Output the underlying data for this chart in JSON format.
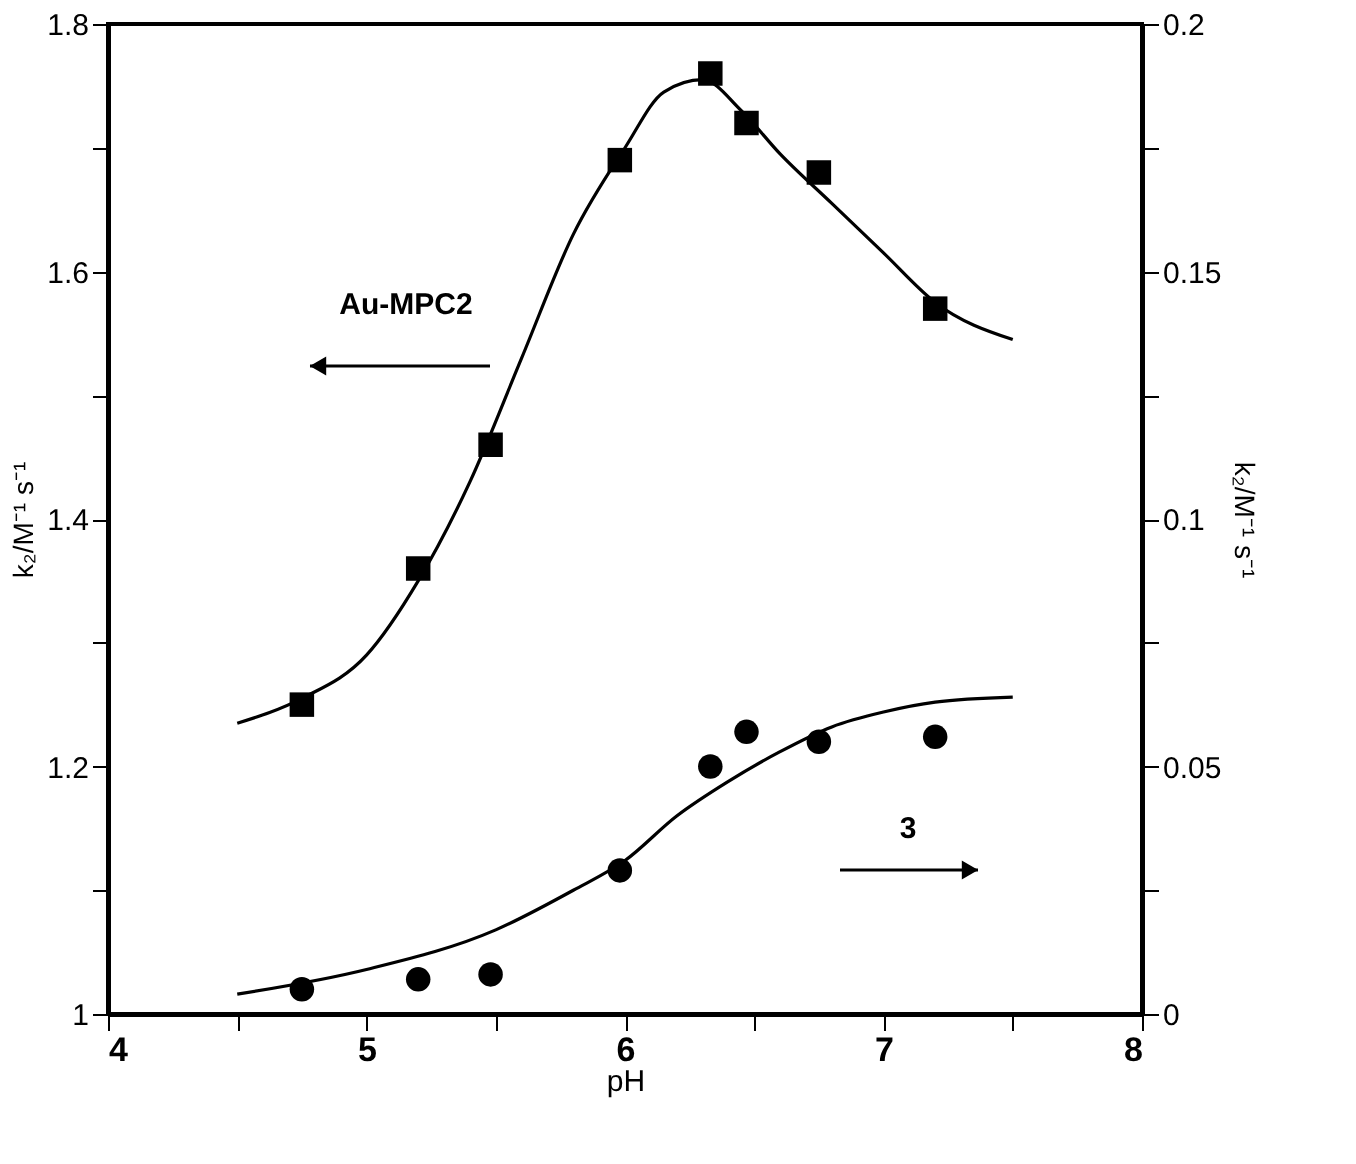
{
  "chart_data": {
    "type": "scatter",
    "xlabel": "pH",
    "ylabel": "k₂/M⁻¹ s⁻¹",
    "y2label": "k₂/M⁻¹ s⁻¹",
    "xlim": [
      4,
      8
    ],
    "xticks": [
      4,
      {
        "value": 4.5,
        "label": null
      },
      5,
      {
        "value": 5.5,
        "label": null
      },
      6,
      {
        "value": 6.5,
        "label": null
      },
      7,
      {
        "value": 7.5,
        "label": null
      },
      8
    ],
    "ylim": [
      1,
      1.8
    ],
    "yticks": [
      1,
      {
        "value": 1.1,
        "label": null
      },
      1.2,
      {
        "value": 1.3,
        "label": null
      },
      1.4,
      {
        "value": 1.5,
        "label": null
      },
      1.6,
      {
        "value": 1.7,
        "label": null
      },
      1.8
    ],
    "y2lim": [
      0,
      0.2
    ],
    "y2ticks": [
      0,
      {
        "value": 0.025,
        "label": null
      },
      0.05,
      {
        "value": 0.075,
        "label": null
      },
      0.1,
      {
        "value": 0.125,
        "label": null
      },
      0.15,
      {
        "value": 0.175,
        "label": null
      },
      0.2
    ],
    "grid": false,
    "series": [
      {
        "marker": "square",
        "color": "#000000",
        "x": [
          4.75,
          5.2,
          5.48,
          5.98,
          6.33,
          6.47,
          6.75,
          7.2
        ],
        "values": [
          1.25,
          1.36,
          1.46,
          1.69,
          1.76,
          1.72,
          1.68,
          1.57
        ]
      },
      {
        "marker": "circle",
        "color": "#000000",
        "axis": "y2",
        "x": [
          4.75,
          5.2,
          5.48,
          5.98,
          6.33,
          6.47,
          6.75,
          7.2
        ],
        "values": [
          0.005,
          0.007,
          0.008,
          0.029,
          0.05,
          0.057,
          0.055,
          0.056
        ]
      },
      {
        "type": "line",
        "marker": "none",
        "color": "#000000",
        "x": [
          4.5,
          4.75,
          5.0,
          5.2,
          5.4,
          5.6,
          5.8,
          6.0,
          6.15,
          6.3,
          6.45,
          6.6,
          6.8,
          7.0,
          7.2,
          7.5
        ],
        "values": [
          1.235,
          1.255,
          1.29,
          1.35,
          1.43,
          1.53,
          1.63,
          1.7,
          1.745,
          1.755,
          1.73,
          1.695,
          1.655,
          1.615,
          1.575,
          1.545
        ]
      },
      {
        "type": "line",
        "marker": "none",
        "color": "#000000",
        "axis": "y2",
        "x": [
          4.5,
          5.0,
          5.5,
          5.8,
          6.0,
          6.2,
          6.4,
          6.6,
          6.8,
          7.0,
          7.2,
          7.5
        ],
        "values": [
          0.004,
          0.009,
          0.017,
          0.025,
          0.031,
          0.04,
          0.047,
          0.053,
          0.058,
          0.061,
          0.063,
          0.064
        ]
      }
    ],
    "annotations": [
      "Au-MPC2",
      "3"
    ]
  }
}
